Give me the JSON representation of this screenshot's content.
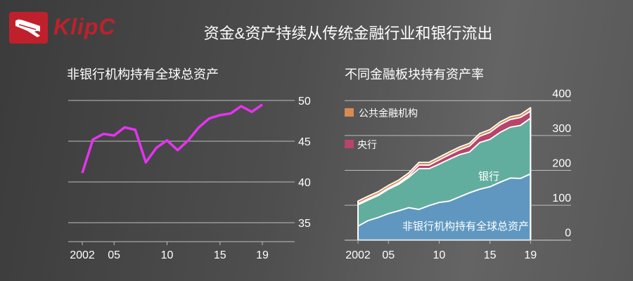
{
  "brand": {
    "name": "KlipC",
    "tm": "TM",
    "color": "#c0202c"
  },
  "title": "资金&资产持续从传统金融行业和银行流出",
  "chart_data": [
    {
      "type": "line",
      "title": "非银行机构持有全球总资产",
      "x": [
        2002,
        2003,
        2004,
        2005,
        2006,
        2007,
        2008,
        2009,
        2010,
        2011,
        2012,
        2013,
        2014,
        2015,
        2016,
        2017,
        2018,
        2019
      ],
      "series": [
        {
          "name": "非银行机构持有全球总资产",
          "color": "#e633f0",
          "values": [
            41.1,
            45.2,
            45.9,
            45.7,
            46.7,
            46.4,
            42.4,
            44.2,
            45.1,
            43.9,
            45.1,
            46.7,
            47.8,
            48.2,
            48.4,
            49.3,
            48.6,
            49.5
          ]
        }
      ],
      "xticks": [
        2002,
        2005,
        2010,
        2015,
        2019
      ],
      "xtick_labels": [
        "2002",
        "05",
        "10",
        "15",
        "19"
      ],
      "yticks": [
        35,
        40,
        45,
        50
      ],
      "ytick_labels": [
        "35",
        "40",
        "45",
        "50"
      ],
      "ylim": [
        32.7,
        50
      ],
      "y_axis_side": "right",
      "grid": true
    },
    {
      "type": "area",
      "stacked": true,
      "title": "不同金融板块持有资产率",
      "x": [
        2002,
        2003,
        2004,
        2005,
        2006,
        2007,
        2008,
        2009,
        2010,
        2011,
        2012,
        2013,
        2014,
        2015,
        2016,
        2017,
        2018,
        2019
      ],
      "series": [
        {
          "name": "非银行机构持有全球总资产",
          "color": "#5f97c0",
          "values": [
            40,
            56,
            65,
            76,
            84,
            93,
            88,
            99,
            108,
            112,
            124,
            136,
            146,
            153,
            166,
            178,
            177,
            190
          ]
        },
        {
          "name": "银行",
          "color": "#62ae9e",
          "values": [
            61,
            59,
            63,
            70,
            76,
            87,
            117,
            106,
            110,
            120,
            121,
            117,
            134,
            136,
            143,
            146,
            152,
            160
          ]
        },
        {
          "name": "央行",
          "color": "#b8446b",
          "values": [
            3,
            3,
            3,
            3,
            4,
            5,
            10,
            10,
            12,
            13,
            14,
            17,
            18,
            20,
            22,
            22,
            23,
            20
          ]
        },
        {
          "name": "公共金融机构",
          "color": "#d88a52",
          "values": [
            8,
            8,
            8,
            8,
            8,
            8,
            8,
            8,
            8,
            8,
            8,
            8,
            8,
            8,
            8,
            8,
            8,
            10
          ]
        }
      ],
      "legend": [
        "公共金融机构",
        "央行"
      ],
      "legend_placement": "top-left",
      "xticks": [
        2002,
        2005,
        2010,
        2015,
        2019
      ],
      "xtick_labels": [
        "2002",
        "05",
        "10",
        "15",
        "19"
      ],
      "yticks": [
        0,
        100,
        200,
        300,
        400
      ],
      "ytick_labels": [
        "0",
        "100",
        "200",
        "300",
        "400"
      ],
      "ylim": [
        0,
        400
      ],
      "y_axis_side": "right",
      "grid": true
    }
  ]
}
